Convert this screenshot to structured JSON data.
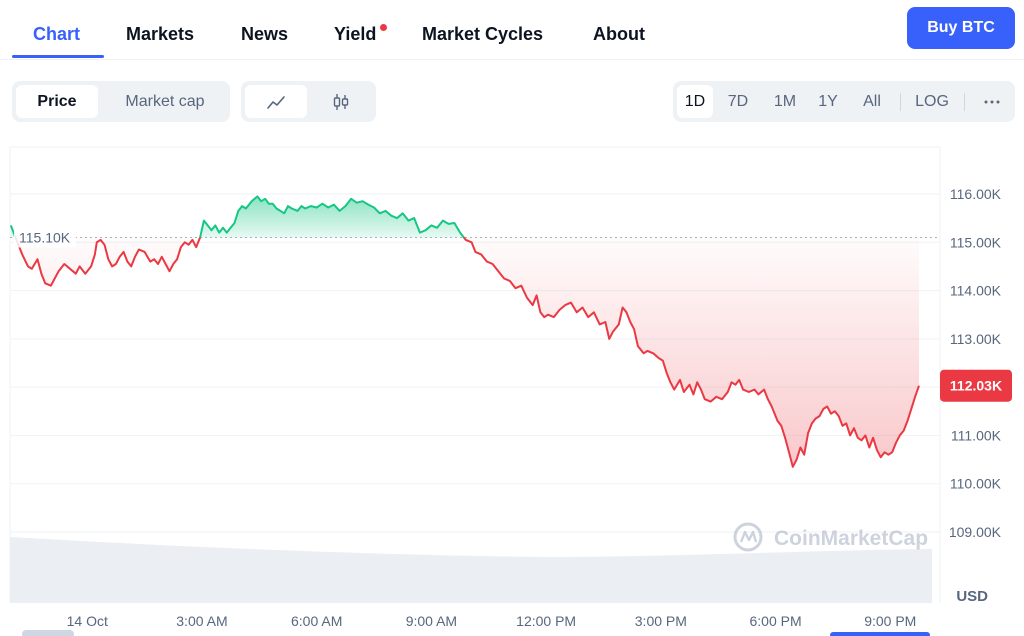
{
  "nav": {
    "tabs": [
      {
        "label": "Chart",
        "active": true
      },
      {
        "label": "Markets"
      },
      {
        "label": "News"
      },
      {
        "label": "Yield",
        "has_notification_dot": true
      },
      {
        "label": "Market Cycles"
      },
      {
        "label": "About"
      }
    ],
    "buy_button": "Buy BTC"
  },
  "toolbar": {
    "metric_tabs": [
      {
        "label": "Price",
        "active": true
      },
      {
        "label": "Market cap"
      }
    ],
    "chart_type_buttons": [
      {
        "icon": "line-chart-icon",
        "active": true
      },
      {
        "icon": "candlestick-icon"
      }
    ],
    "ranges": [
      "1D",
      "7D",
      "1M",
      "1Y",
      "All"
    ],
    "active_range": "1D",
    "scale_button": "LOG",
    "more_icon": "more-icon"
  },
  "chart_data": {
    "type": "line",
    "reference_label": "115.10K",
    "reference_value": 115.1,
    "current_price_label": "112.03K",
    "currency": "USD",
    "watermark": "CoinMarketCap",
    "ylim": [
      108.2,
      117.2
    ],
    "yticks": [
      {
        "label": "116.00K",
        "value": 116
      },
      {
        "label": "115.00K",
        "value": 115
      },
      {
        "label": "114.00K",
        "value": 114
      },
      {
        "label": "113.00K",
        "value": 113
      },
      {
        "label": "112.00K",
        "value": 112
      },
      {
        "label": "111.00K",
        "value": 111
      },
      {
        "label": "110.00K",
        "value": 110
      },
      {
        "label": "109.00K",
        "value": 109
      }
    ],
    "xticks": [
      {
        "label": "14 Oct",
        "t": 0
      },
      {
        "label": "3:00 AM",
        "t": 3
      },
      {
        "label": "6:00 AM",
        "t": 6
      },
      {
        "label": "9:00 AM",
        "t": 9
      },
      {
        "label": "12:00 PM",
        "t": 12
      },
      {
        "label": "3:00 PM",
        "t": 15
      },
      {
        "label": "6:00 PM",
        "t": 18
      },
      {
        "label": "9:00 PM",
        "t": 21
      }
    ],
    "x_unit": "hours since 14 Oct 00:00",
    "xlim": [
      -2.02,
      22.3
    ],
    "price_series": [
      [
        -2.0,
        115.35
      ],
      [
        -1.7,
        114.75
      ],
      [
        -1.55,
        114.5
      ],
      [
        -1.45,
        114.45
      ],
      [
        -1.3,
        114.65
      ],
      [
        -1.2,
        114.35
      ],
      [
        -1.1,
        114.15
      ],
      [
        -0.95,
        114.1
      ],
      [
        -0.85,
        114.25
      ],
      [
        -0.75,
        114.4
      ],
      [
        -0.6,
        114.55
      ],
      [
        -0.45,
        114.45
      ],
      [
        -0.3,
        114.35
      ],
      [
        -0.2,
        114.5
      ],
      [
        -0.05,
        114.35
      ],
      [
        0.1,
        114.5
      ],
      [
        0.2,
        114.75
      ],
      [
        0.25,
        115.0
      ],
      [
        0.35,
        115.05
      ],
      [
        0.45,
        114.95
      ],
      [
        0.55,
        114.65
      ],
      [
        0.65,
        114.5
      ],
      [
        0.75,
        114.55
      ],
      [
        0.85,
        114.7
      ],
      [
        0.95,
        114.8
      ],
      [
        1.05,
        114.6
      ],
      [
        1.15,
        114.5
      ],
      [
        1.25,
        114.7
      ],
      [
        1.35,
        114.85
      ],
      [
        1.5,
        114.8
      ],
      [
        1.65,
        114.6
      ],
      [
        1.75,
        114.65
      ],
      [
        1.85,
        114.55
      ],
      [
        1.95,
        114.7
      ],
      [
        2.05,
        114.55
      ],
      [
        2.15,
        114.4
      ],
      [
        2.25,
        114.55
      ],
      [
        2.35,
        114.65
      ],
      [
        2.45,
        114.9
      ],
      [
        2.55,
        115.0
      ],
      [
        2.65,
        114.95
      ],
      [
        2.75,
        115.05
      ],
      [
        2.85,
        114.9
      ],
      [
        2.95,
        115.1
      ],
      [
        3.05,
        115.45
      ],
      [
        3.15,
        115.35
      ],
      [
        3.25,
        115.25
      ],
      [
        3.35,
        115.35
      ],
      [
        3.45,
        115.2
      ],
      [
        3.55,
        115.3
      ],
      [
        3.65,
        115.2
      ],
      [
        3.75,
        115.3
      ],
      [
        3.85,
        115.4
      ],
      [
        3.95,
        115.65
      ],
      [
        4.05,
        115.75
      ],
      [
        4.15,
        115.7
      ],
      [
        4.3,
        115.85
      ],
      [
        4.45,
        115.95
      ],
      [
        4.55,
        115.85
      ],
      [
        4.65,
        115.9
      ],
      [
        4.75,
        115.8
      ],
      [
        4.85,
        115.8
      ],
      [
        4.95,
        115.7
      ],
      [
        5.05,
        115.65
      ],
      [
        5.15,
        115.6
      ],
      [
        5.25,
        115.75
      ],
      [
        5.35,
        115.7
      ],
      [
        5.5,
        115.65
      ],
      [
        5.6,
        115.75
      ],
      [
        5.7,
        115.7
      ],
      [
        5.85,
        115.75
      ],
      [
        6.0,
        115.72
      ],
      [
        6.15,
        115.8
      ],
      [
        6.3,
        115.72
      ],
      [
        6.45,
        115.78
      ],
      [
        6.6,
        115.65
      ],
      [
        6.75,
        115.75
      ],
      [
        6.9,
        115.9
      ],
      [
        7.05,
        115.82
      ],
      [
        7.2,
        115.85
      ],
      [
        7.35,
        115.78
      ],
      [
        7.5,
        115.72
      ],
      [
        7.65,
        115.6
      ],
      [
        7.8,
        115.65
      ],
      [
        7.95,
        115.55
      ],
      [
        8.1,
        115.5
      ],
      [
        8.25,
        115.6
      ],
      [
        8.4,
        115.45
      ],
      [
        8.55,
        115.5
      ],
      [
        8.7,
        115.2
      ],
      [
        8.85,
        115.25
      ],
      [
        9.0,
        115.35
      ],
      [
        9.15,
        115.3
      ],
      [
        9.3,
        115.45
      ],
      [
        9.45,
        115.38
      ],
      [
        9.6,
        115.4
      ],
      [
        9.75,
        115.2
      ],
      [
        9.9,
        115.05
      ],
      [
        10.05,
        115.0
      ],
      [
        10.15,
        114.8
      ],
      [
        10.3,
        114.75
      ],
      [
        10.45,
        114.6
      ],
      [
        10.6,
        114.55
      ],
      [
        10.75,
        114.4
      ],
      [
        10.9,
        114.25
      ],
      [
        11.05,
        114.2
      ],
      [
        11.2,
        114.05
      ],
      [
        11.35,
        114.1
      ],
      [
        11.5,
        113.85
      ],
      [
        11.65,
        113.7
      ],
      [
        11.75,
        113.9
      ],
      [
        11.85,
        113.55
      ],
      [
        11.95,
        113.45
      ],
      [
        12.05,
        113.5
      ],
      [
        12.2,
        113.45
      ],
      [
        12.35,
        113.6
      ],
      [
        12.5,
        113.7
      ],
      [
        12.65,
        113.75
      ],
      [
        12.8,
        113.55
      ],
      [
        12.95,
        113.65
      ],
      [
        13.1,
        113.45
      ],
      [
        13.25,
        113.55
      ],
      [
        13.4,
        113.3
      ],
      [
        13.55,
        113.35
      ],
      [
        13.65,
        113.0
      ],
      [
        13.75,
        113.15
      ],
      [
        13.9,
        113.3
      ],
      [
        14.0,
        113.65
      ],
      [
        14.1,
        113.55
      ],
      [
        14.2,
        113.35
      ],
      [
        14.3,
        113.2
      ],
      [
        14.4,
        112.85
      ],
      [
        14.55,
        112.7
      ],
      [
        14.65,
        112.75
      ],
      [
        14.8,
        112.7
      ],
      [
        14.95,
        112.6
      ],
      [
        15.05,
        112.55
      ],
      [
        15.15,
        112.3
      ],
      [
        15.25,
        112.1
      ],
      [
        15.35,
        111.95
      ],
      [
        15.5,
        112.15
      ],
      [
        15.6,
        111.9
      ],
      [
        15.75,
        112.05
      ],
      [
        15.85,
        111.85
      ],
      [
        15.95,
        112.1
      ],
      [
        16.05,
        111.95
      ],
      [
        16.15,
        111.75
      ],
      [
        16.3,
        111.7
      ],
      [
        16.45,
        111.8
      ],
      [
        16.6,
        111.75
      ],
      [
        16.75,
        111.9
      ],
      [
        16.85,
        112.1
      ],
      [
        16.95,
        112.05
      ],
      [
        17.05,
        112.15
      ],
      [
        17.15,
        111.95
      ],
      [
        17.3,
        111.9
      ],
      [
        17.45,
        111.95
      ],
      [
        17.55,
        111.85
      ],
      [
        17.7,
        111.95
      ],
      [
        17.8,
        111.75
      ],
      [
        17.9,
        111.6
      ],
      [
        18.05,
        111.3
      ],
      [
        18.15,
        111.2
      ],
      [
        18.25,
        110.95
      ],
      [
        18.35,
        110.65
      ],
      [
        18.45,
        110.35
      ],
      [
        18.55,
        110.5
      ],
      [
        18.65,
        110.75
      ],
      [
        18.75,
        110.6
      ],
      [
        18.85,
        111.05
      ],
      [
        18.95,
        111.25
      ],
      [
        19.05,
        111.35
      ],
      [
        19.15,
        111.4
      ],
      [
        19.25,
        111.55
      ],
      [
        19.35,
        111.6
      ],
      [
        19.45,
        111.45
      ],
      [
        19.55,
        111.5
      ],
      [
        19.65,
        111.4
      ],
      [
        19.75,
        111.2
      ],
      [
        19.85,
        111.25
      ],
      [
        19.95,
        111.0
      ],
      [
        20.05,
        111.15
      ],
      [
        20.15,
        110.95
      ],
      [
        20.25,
        110.9
      ],
      [
        20.35,
        111.0
      ],
      [
        20.45,
        110.75
      ],
      [
        20.55,
        110.95
      ],
      [
        20.65,
        110.7
      ],
      [
        20.75,
        110.55
      ],
      [
        20.85,
        110.65
      ],
      [
        20.95,
        110.6
      ],
      [
        21.05,
        110.65
      ],
      [
        21.15,
        110.85
      ],
      [
        21.25,
        111.0
      ],
      [
        21.35,
        111.1
      ],
      [
        21.45,
        111.3
      ],
      [
        21.55,
        111.55
      ],
      [
        21.65,
        111.8
      ],
      [
        21.75,
        112.03
      ]
    ]
  },
  "colors": {
    "accent": "#3861fb",
    "up": "#16c784",
    "down": "#ea3943",
    "axis_text": "#58667e",
    "grid": "#eff2f5"
  }
}
